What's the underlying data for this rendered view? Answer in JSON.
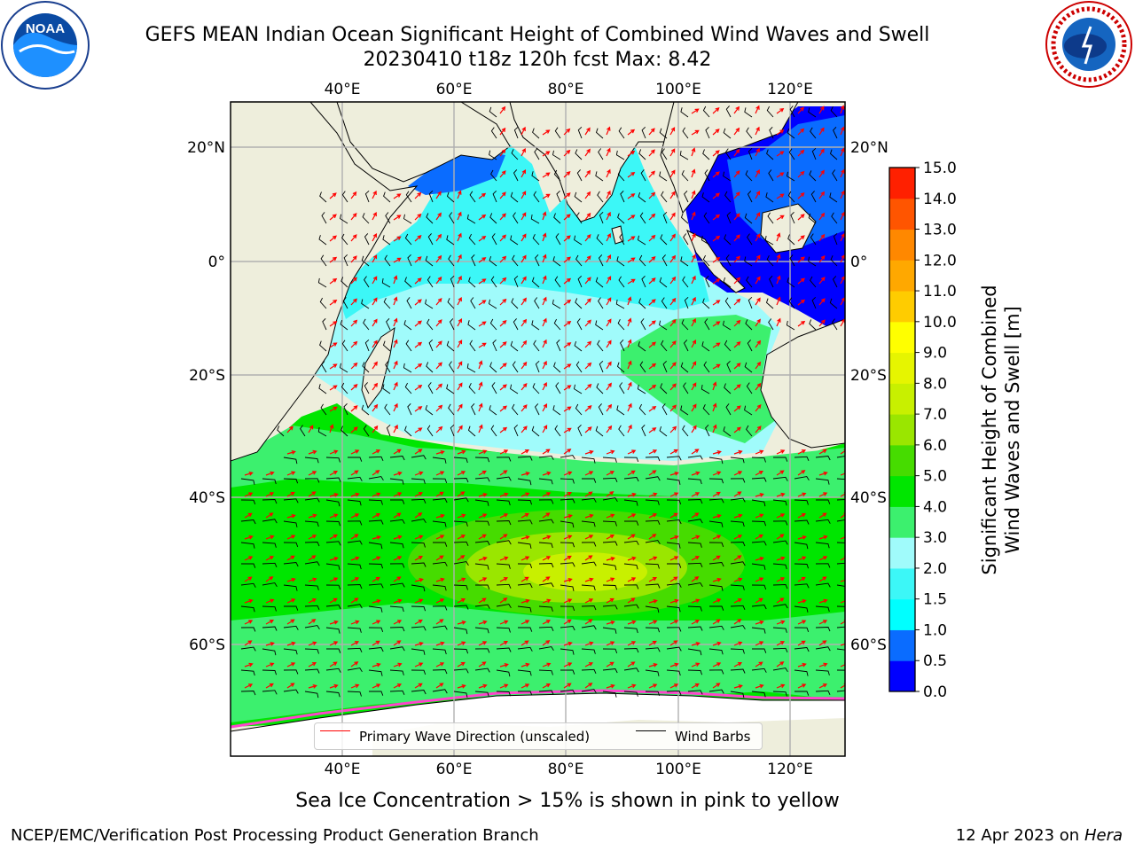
{
  "title": {
    "line1": "GEFS MEAN Indian Ocean Significant Height of Combined Wind Waves and Swell",
    "line2": "20230410 t18z 120h fcst   Max: 8.42"
  },
  "logos": {
    "noaa": {
      "text": "NOAA",
      "icon": "noaa-logo-icon"
    },
    "nws": {
      "icon": "nws-logo-icon",
      "ring_text": "NATIONAL WEATHER SERVICE"
    }
  },
  "map": {
    "lon_ticks_top": [
      "40°E",
      "60°E",
      "80°E",
      "100°E",
      "120°E"
    ],
    "lon_ticks_bottom": [
      "40°E",
      "60°E",
      "80°E",
      "100°E",
      "120°E"
    ],
    "lat_ticks_left": [
      "20°N",
      "0°",
      "20°S",
      "40°S",
      "60°S"
    ],
    "lat_ticks_right": [
      "20°N",
      "0°",
      "20°S",
      "40°S",
      "60°S"
    ],
    "colors": {
      "land": "#eeeedc",
      "grid": "#b0b0b0",
      "wave_arrow": "#ff0000",
      "wind_barb": "#000000"
    }
  },
  "colorbar": {
    "label_line1": "Significant Height of Combined",
    "label_line2": "Wind Waves and Swell [m]",
    "ticks": [
      "0.0",
      "0.5",
      "1.0",
      "1.5",
      "2.0",
      "3.0",
      "4.0",
      "5.0",
      "6.0",
      "7.0",
      "8.0",
      "9.0",
      "10.0",
      "11.0",
      "12.0",
      "13.0",
      "14.0",
      "15.0"
    ],
    "colors": [
      "#0000ff",
      "#0a6cff",
      "#00ffff",
      "#3cf7f7",
      "#a0fbfb",
      "#3cf06e",
      "#00e600",
      "#46dc00",
      "#9ae600",
      "#c8f000",
      "#e6f500",
      "#ffff00",
      "#ffcc00",
      "#ffa800",
      "#ff8800",
      "#ff5500",
      "#ff2000"
    ]
  },
  "legend": {
    "wave_label": "Primary Wave Direction (unscaled)",
    "barb_label": "Wind Barbs"
  },
  "note": "Sea Ice Concentration > 15% is shown in pink to yellow",
  "footer": {
    "left": "NCEP/EMC/Verification Post Processing Product Generation Branch",
    "date": "12 Apr 2023 on",
    "host": "Hera"
  }
}
